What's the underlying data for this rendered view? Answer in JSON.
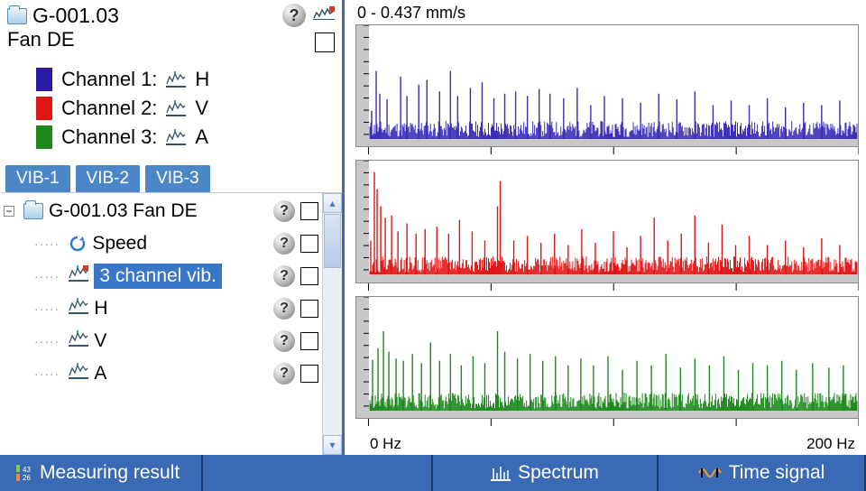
{
  "header": {
    "device_id": "G-001.03",
    "location": "Fan DE"
  },
  "legend": {
    "channels": [
      {
        "label": "Channel 1:",
        "dir": "H",
        "color": "#2b1aa8"
      },
      {
        "label": "Channel 2:",
        "dir": "V",
        "color": "#e01515"
      },
      {
        "label": "Channel 3:",
        "dir": "A",
        "color": "#1e8a1e"
      }
    ]
  },
  "vib_tabs": [
    "VIB-1",
    "VIB-2",
    "VIB-3"
  ],
  "tree": {
    "root_label": "G-001.03 Fan DE",
    "items": [
      {
        "label": "Speed",
        "icon": "refresh"
      },
      {
        "label": "3 channel vib.",
        "icon": "chart3",
        "selected": true
      },
      {
        "label": "H",
        "icon": "chart"
      },
      {
        "label": "V",
        "icon": "chart"
      },
      {
        "label": "A",
        "icon": "chart"
      }
    ]
  },
  "chart": {
    "scale_label": "0  -  0.437 mm/s",
    "x_min_label": "0 Hz",
    "x_max_label": "200 Hz",
    "background": "#ffffff",
    "floor_color": "#c8c8c8",
    "xlim": [
      0,
      200
    ],
    "panels": [
      {
        "color": "#3a2db5",
        "seed": 11,
        "peaks": [
          [
            3,
            25
          ],
          [
            8,
            60
          ],
          [
            12,
            40
          ],
          [
            20,
            35
          ],
          [
            35,
            55
          ],
          [
            42,
            38
          ],
          [
            55,
            48
          ],
          [
            64,
            52
          ],
          [
            78,
            42
          ],
          [
            90,
            60
          ],
          [
            98,
            38
          ],
          [
            112,
            45
          ],
          [
            125,
            50
          ],
          [
            138,
            36
          ],
          [
            150,
            40
          ],
          [
            162,
            42
          ],
          [
            175,
            38
          ],
          [
            188,
            44
          ],
          [
            200,
            40
          ],
          [
            215,
            36
          ],
          [
            230,
            45
          ],
          [
            245,
            30
          ],
          [
            260,
            38
          ],
          [
            280,
            36
          ],
          [
            300,
            32
          ],
          [
            320,
            40
          ],
          [
            340,
            35
          ],
          [
            360,
            42
          ],
          [
            380,
            30
          ],
          [
            400,
            34
          ],
          [
            420,
            30
          ],
          [
            440,
            36
          ],
          [
            460,
            28
          ],
          [
            480,
            32
          ],
          [
            500,
            30
          ],
          [
            520,
            34
          ]
        ]
      },
      {
        "color": "#e01515",
        "seed": 22,
        "peaks": [
          [
            2,
            30
          ],
          [
            6,
            90
          ],
          [
            9,
            75
          ],
          [
            13,
            60
          ],
          [
            18,
            50
          ],
          [
            25,
            52
          ],
          [
            32,
            38
          ],
          [
            42,
            45
          ],
          [
            52,
            36
          ],
          [
            62,
            40
          ],
          [
            75,
            42
          ],
          [
            88,
            36
          ],
          [
            100,
            48
          ],
          [
            114,
            38
          ],
          [
            128,
            30
          ],
          [
            142,
            60
          ],
          [
            145,
            82
          ],
          [
            160,
            30
          ],
          [
            175,
            34
          ],
          [
            190,
            28
          ],
          [
            205,
            36
          ],
          [
            220,
            26
          ],
          [
            235,
            40
          ],
          [
            250,
            28
          ],
          [
            270,
            38
          ],
          [
            285,
            24
          ],
          [
            300,
            34
          ],
          [
            315,
            50
          ],
          [
            330,
            30
          ],
          [
            345,
            36
          ],
          [
            360,
            52
          ],
          [
            375,
            28
          ],
          [
            390,
            44
          ],
          [
            405,
            26
          ],
          [
            420,
            34
          ],
          [
            440,
            26
          ],
          [
            460,
            30
          ],
          [
            480,
            24
          ],
          [
            500,
            32
          ],
          [
            520,
            26
          ]
        ]
      },
      {
        "color": "#1e8a1e",
        "seed": 33,
        "peaks": [
          [
            4,
            45
          ],
          [
            10,
            55
          ],
          [
            16,
            70
          ],
          [
            22,
            52
          ],
          [
            30,
            46
          ],
          [
            38,
            44
          ],
          [
            48,
            50
          ],
          [
            58,
            42
          ],
          [
            68,
            60
          ],
          [
            78,
            44
          ],
          [
            90,
            50
          ],
          [
            102,
            40
          ],
          [
            115,
            48
          ],
          [
            128,
            42
          ],
          [
            142,
            70
          ],
          [
            150,
            52
          ],
          [
            164,
            46
          ],
          [
            178,
            50
          ],
          [
            192,
            44
          ],
          [
            206,
            48
          ],
          [
            220,
            40
          ],
          [
            234,
            46
          ],
          [
            248,
            40
          ],
          [
            264,
            48
          ],
          [
            280,
            36
          ],
          [
            296,
            44
          ],
          [
            312,
            40
          ],
          [
            328,
            50
          ],
          [
            344,
            38
          ],
          [
            360,
            46
          ],
          [
            376,
            40
          ],
          [
            392,
            48
          ],
          [
            408,
            36
          ],
          [
            424,
            42
          ],
          [
            440,
            40
          ],
          [
            456,
            44
          ],
          [
            472,
            36
          ],
          [
            490,
            42
          ],
          [
            508,
            38
          ],
          [
            524,
            40
          ]
        ]
      }
    ]
  },
  "bottom_tabs": {
    "measuring": "Measuring result",
    "spectrum": "Spectrum",
    "timesignal": "Time signal"
  }
}
